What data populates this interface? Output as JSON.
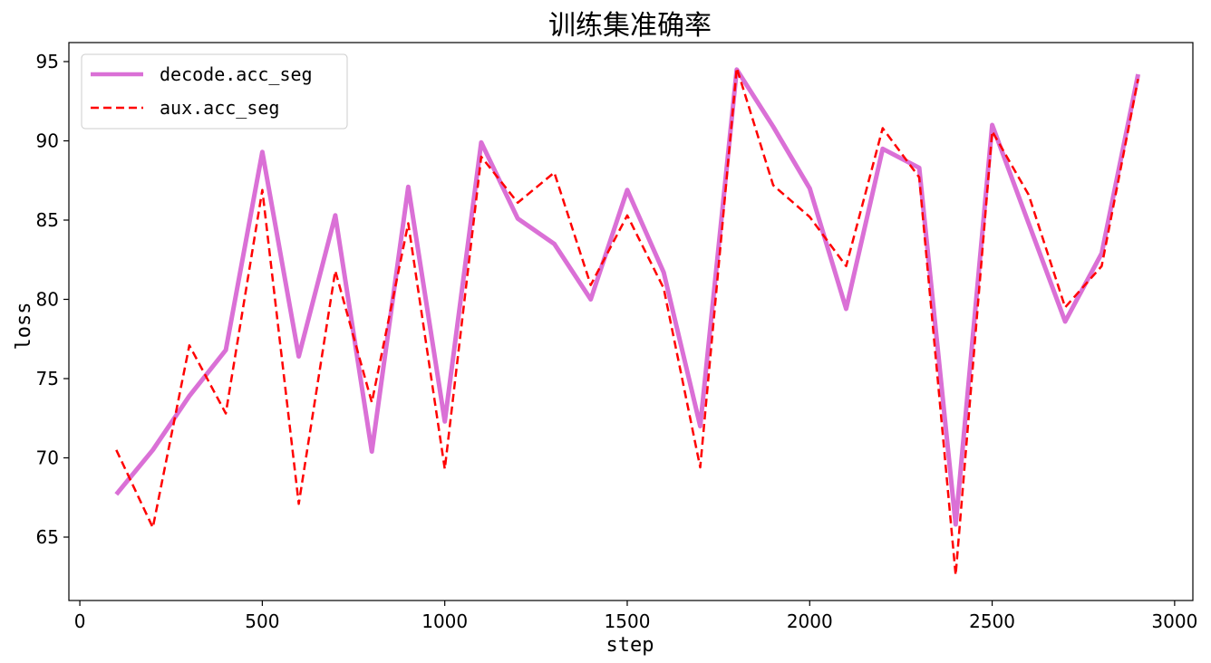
{
  "chart_data": {
    "type": "line",
    "title": "训练集准确率",
    "xlabel": "step",
    "ylabel": "loss",
    "xlim": [
      -30,
      3050
    ],
    "ylim": [
      61,
      96.2
    ],
    "xticks": [
      0,
      500,
      1000,
      1500,
      2000,
      2500,
      3000
    ],
    "yticks": [
      65,
      70,
      75,
      80,
      85,
      90,
      95
    ],
    "legend_position": "top-left",
    "grid": false,
    "x": [
      100,
      200,
      300,
      400,
      500,
      600,
      700,
      800,
      900,
      1000,
      1100,
      1200,
      1300,
      1400,
      1500,
      1600,
      1700,
      1800,
      1900,
      2000,
      2100,
      2200,
      2300,
      2400,
      2500,
      2600,
      2700,
      2800,
      2900
    ],
    "series": [
      {
        "name": "decode.acc_seg",
        "color": "#da70d6",
        "style": "solid",
        "values": [
          67.7,
          70.5,
          73.9,
          76.8,
          89.3,
          76.4,
          85.3,
          70.4,
          87.1,
          72.3,
          89.9,
          85.1,
          83.5,
          80.0,
          86.9,
          81.7,
          72.0,
          94.5,
          90.9,
          87.0,
          79.4,
          89.5,
          88.3,
          65.8,
          91.0,
          84.8,
          78.6,
          82.9,
          94.2
        ]
      },
      {
        "name": "aux.acc_seg",
        "color": "#ff0000",
        "style": "dashed",
        "values": [
          70.5,
          65.6,
          77.1,
          72.8,
          86.9,
          67.1,
          81.8,
          73.5,
          84.8,
          69.3,
          89.0,
          86.1,
          88.0,
          80.9,
          85.3,
          80.7,
          69.4,
          94.6,
          87.2,
          85.2,
          82.1,
          90.8,
          87.7,
          62.6,
          90.6,
          86.6,
          79.5,
          82.1,
          93.9
        ]
      }
    ]
  }
}
